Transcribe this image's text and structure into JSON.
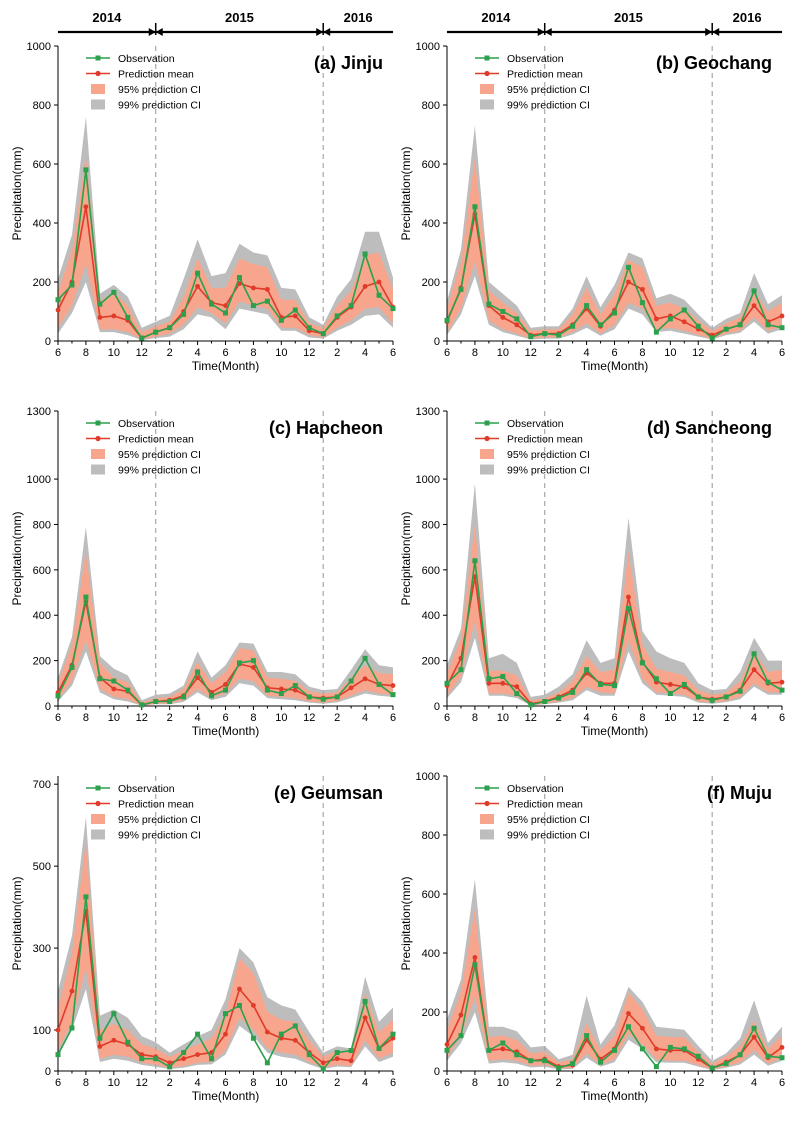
{
  "figure": {
    "x_axis_label": "Time(Month)",
    "y_axis_label": "Precipitation(mm)",
    "years": [
      "2014",
      "2015",
      "2016"
    ],
    "legend": {
      "observation": "Observation",
      "prediction_mean": "Prediction mean",
      "ci95": "95% prediction CI",
      "ci99": "99% prediction CI"
    },
    "colors": {
      "observation": "#2ca04c",
      "prediction_mean": "#e03a28",
      "ci95": "#f7a58c",
      "ci99": "#bdbdbd",
      "divider": "#a8a8a8"
    }
  },
  "chart_data": [
    {
      "type": "line",
      "title": "(a) Jinju",
      "xlabel": "Time(Month)",
      "ylabel": "Precipitation(mm)",
      "x_ticks": [
        "6",
        "8",
        "10",
        "12",
        "2",
        "4",
        "6",
        "8",
        "10",
        "12",
        "2",
        "4",
        "6"
      ],
      "ylim": [
        0,
        1000
      ],
      "y_ticks": [
        0,
        200,
        400,
        600,
        800,
        1000
      ],
      "observation": [
        140,
        190,
        580,
        125,
        165,
        80,
        10,
        30,
        45,
        90,
        230,
        125,
        95,
        215,
        120,
        135,
        70,
        105,
        45,
        25,
        85,
        120,
        295,
        155,
        110
      ],
      "prediction_mean": [
        105,
        200,
        455,
        80,
        85,
        70,
        10,
        30,
        45,
        100,
        185,
        130,
        120,
        195,
        180,
        175,
        80,
        85,
        35,
        25,
        80,
        115,
        185,
        200,
        115
      ],
      "ci95_lower": [
        45,
        120,
        260,
        40,
        40,
        30,
        5,
        15,
        25,
        55,
        115,
        95,
        60,
        135,
        120,
        110,
        45,
        45,
        20,
        12,
        45,
        70,
        110,
        115,
        60
      ],
      "ci95_upper": [
        165,
        310,
        630,
        135,
        165,
        120,
        30,
        50,
        65,
        150,
        280,
        180,
        180,
        280,
        260,
        250,
        140,
        140,
        60,
        45,
        120,
        170,
        290,
        300,
        175
      ],
      "ci99_lower": [
        25,
        95,
        200,
        30,
        30,
        20,
        3,
        10,
        15,
        40,
        90,
        80,
        40,
        110,
        100,
        90,
        35,
        35,
        12,
        8,
        35,
        55,
        85,
        90,
        45
      ],
      "ci99_upper": [
        210,
        360,
        760,
        160,
        190,
        150,
        45,
        65,
        85,
        210,
        345,
        220,
        230,
        330,
        300,
        290,
        180,
        175,
        80,
        55,
        150,
        210,
        370,
        370,
        215
      ]
    },
    {
      "type": "line",
      "title": "(b) Geochang",
      "xlabel": "Time(Month)",
      "ylabel": "Precipitation(mm)",
      "x_ticks": [
        "6",
        "8",
        "10",
        "12",
        "2",
        "4",
        "6",
        "8",
        "10",
        "12",
        "2",
        "4",
        "6"
      ],
      "ylim": [
        0,
        1000
      ],
      "y_ticks": [
        0,
        200,
        400,
        600,
        800,
        1000
      ],
      "observation": [
        70,
        175,
        455,
        125,
        100,
        75,
        15,
        25,
        20,
        50,
        120,
        55,
        95,
        250,
        130,
        30,
        75,
        105,
        50,
        10,
        40,
        55,
        170,
        55,
        45
      ],
      "prediction_mean": [
        65,
        180,
        430,
        120,
        80,
        55,
        20,
        25,
        25,
        55,
        110,
        50,
        105,
        200,
        175,
        75,
        85,
        65,
        40,
        20,
        40,
        55,
        120,
        65,
        85
      ],
      "ci95_lower": [
        30,
        110,
        270,
        70,
        40,
        25,
        8,
        12,
        12,
        30,
        60,
        25,
        55,
        130,
        110,
        40,
        45,
        35,
        20,
        8,
        25,
        35,
        80,
        35,
        50
      ],
      "ci95_upper": [
        110,
        270,
        620,
        170,
        130,
        95,
        35,
        40,
        40,
        90,
        180,
        90,
        160,
        275,
        250,
        120,
        130,
        110,
        70,
        35,
        60,
        80,
        170,
        100,
        130
      ],
      "ci99_lower": [
        20,
        90,
        220,
        55,
        30,
        18,
        5,
        8,
        8,
        22,
        45,
        18,
        40,
        110,
        90,
        30,
        35,
        25,
        15,
        5,
        20,
        28,
        65,
        25,
        40
      ],
      "ci99_upper": [
        135,
        310,
        730,
        200,
        160,
        120,
        45,
        50,
        50,
        110,
        220,
        115,
        190,
        300,
        280,
        145,
        160,
        140,
        90,
        45,
        75,
        95,
        230,
        125,
        155
      ]
    },
    {
      "type": "line",
      "title": "(c) Hapcheon",
      "xlabel": "Time(Month)",
      "ylabel": "Precipitation(mm)",
      "x_ticks": [
        "6",
        "8",
        "10",
        "12",
        "2",
        "4",
        "6",
        "8",
        "10",
        "12",
        "2",
        "4",
        "6"
      ],
      "ylim": [
        0,
        1300
      ],
      "y_ticks": [
        0,
        200,
        400,
        600,
        800,
        1000,
        1300
      ],
      "observation": [
        45,
        170,
        480,
        120,
        110,
        70,
        5,
        20,
        20,
        40,
        150,
        45,
        70,
        190,
        200,
        70,
        55,
        90,
        40,
        30,
        40,
        110,
        210,
        95,
        50
      ],
      "prediction_mean": [
        60,
        180,
        460,
        125,
        75,
        65,
        5,
        20,
        25,
        45,
        125,
        60,
        95,
        185,
        170,
        80,
        75,
        70,
        40,
        35,
        40,
        80,
        120,
        95,
        90
      ],
      "ci95_lower": [
        30,
        110,
        290,
        75,
        40,
        30,
        2,
        10,
        12,
        25,
        75,
        35,
        55,
        120,
        110,
        45,
        40,
        35,
        20,
        15,
        22,
        45,
        70,
        55,
        50
      ],
      "ci95_upper": [
        100,
        270,
        680,
        190,
        125,
        105,
        15,
        35,
        40,
        75,
        195,
        100,
        150,
        255,
        245,
        125,
        120,
        110,
        65,
        55,
        60,
        125,
        180,
        145,
        140
      ],
      "ci99_lower": [
        20,
        90,
        240,
        60,
        30,
        20,
        1,
        8,
        8,
        18,
        60,
        25,
        40,
        100,
        90,
        35,
        30,
        25,
        15,
        10,
        16,
        35,
        55,
        45,
        40
      ],
      "ci99_upper": [
        125,
        305,
        790,
        220,
        165,
        135,
        25,
        50,
        55,
        90,
        240,
        125,
        180,
        280,
        275,
        150,
        150,
        140,
        85,
        70,
        75,
        160,
        250,
        180,
        170
      ]
    },
    {
      "type": "line",
      "title": "(d) Sancheong",
      "xlabel": "Time(Month)",
      "ylabel": "Precipitation(mm)",
      "x_ticks": [
        "6",
        "8",
        "10",
        "12",
        "2",
        "4",
        "6",
        "8",
        "10",
        "12",
        "2",
        "4",
        "6"
      ],
      "ylim": [
        0,
        1300
      ],
      "y_ticks": [
        0,
        200,
        400,
        600,
        800,
        1000,
        1300
      ],
      "observation": [
        100,
        160,
        640,
        120,
        130,
        55,
        5,
        20,
        35,
        60,
        160,
        95,
        90,
        430,
        190,
        120,
        55,
        95,
        40,
        25,
        40,
        65,
        230,
        105,
        70
      ],
      "prediction_mean": [
        90,
        210,
        570,
        100,
        100,
        85,
        10,
        20,
        40,
        70,
        145,
        100,
        100,
        480,
        195,
        105,
        95,
        85,
        40,
        30,
        40,
        70,
        160,
        100,
        105
      ],
      "ci95_lower": [
        45,
        130,
        370,
        55,
        55,
        45,
        4,
        10,
        20,
        35,
        85,
        60,
        55,
        290,
        120,
        60,
        55,
        50,
        20,
        15,
        22,
        40,
        100,
        60,
        60
      ],
      "ci95_upper": [
        145,
        300,
        800,
        155,
        155,
        135,
        25,
        35,
        60,
        110,
        220,
        150,
        160,
        680,
        270,
        165,
        150,
        135,
        70,
        50,
        60,
        110,
        240,
        150,
        160
      ],
      "ci99_lower": [
        35,
        105,
        300,
        45,
        45,
        35,
        2,
        8,
        15,
        25,
        70,
        45,
        45,
        240,
        100,
        50,
        45,
        40,
        15,
        10,
        17,
        30,
        85,
        50,
        50
      ],
      "ci99_upper": [
        180,
        340,
        980,
        210,
        230,
        190,
        40,
        50,
        85,
        140,
        290,
        190,
        210,
        830,
        330,
        240,
        210,
        190,
        100,
        70,
        75,
        150,
        300,
        200,
        200
      ]
    },
    {
      "type": "line",
      "title": "(e) Geumsan",
      "xlabel": "Time(Month)",
      "ylabel": "Precipitation(mm)",
      "x_ticks": [
        "6",
        "8",
        "10",
        "12",
        "2",
        "4",
        "6",
        "8",
        "10",
        "12",
        "2",
        "4",
        "6"
      ],
      "ylim": [
        0,
        720
      ],
      "y_ticks": [
        0,
        100,
        300,
        500,
        700
      ],
      "observation": [
        40,
        105,
        425,
        80,
        140,
        70,
        30,
        30,
        10,
        45,
        90,
        30,
        140,
        160,
        80,
        20,
        90,
        110,
        40,
        5,
        45,
        50,
        170,
        55,
        90
      ],
      "prediction_mean": [
        100,
        195,
        390,
        60,
        75,
        65,
        40,
        35,
        20,
        30,
        40,
        45,
        90,
        200,
        160,
        95,
        80,
        75,
        45,
        20,
        30,
        25,
        130,
        55,
        80
      ],
      "ci95_lower": [
        50,
        120,
        250,
        30,
        40,
        35,
        20,
        15,
        8,
        12,
        20,
        22,
        50,
        130,
        100,
        55,
        45,
        40,
        22,
        8,
        15,
        12,
        75,
        30,
        45
      ],
      "ci95_upper": [
        155,
        290,
        560,
        100,
        115,
        100,
        65,
        55,
        35,
        50,
        65,
        80,
        140,
        275,
        240,
        145,
        125,
        120,
        75,
        35,
        50,
        45,
        190,
        95,
        125
      ],
      "ci99_lower": [
        40,
        100,
        200,
        22,
        30,
        25,
        15,
        10,
        5,
        8,
        15,
        16,
        40,
        110,
        85,
        45,
        35,
        30,
        16,
        5,
        11,
        9,
        60,
        22,
        35
      ],
      "ci99_upper": [
        195,
        330,
        620,
        135,
        150,
        130,
        85,
        70,
        45,
        65,
        85,
        100,
        175,
        300,
        265,
        180,
        160,
        150,
        95,
        45,
        60,
        55,
        230,
        120,
        155
      ]
    },
    {
      "type": "line",
      "title": "(f) Muju",
      "xlabel": "Time(Month)",
      "ylabel": "Precipitation(mm)",
      "x_ticks": [
        "6",
        "8",
        "10",
        "12",
        "2",
        "4",
        "6",
        "8",
        "10",
        "12",
        "2",
        "4",
        "6"
      ],
      "ylim": [
        0,
        1000
      ],
      "y_ticks": [
        0,
        200,
        400,
        600,
        800,
        1000
      ],
      "observation": [
        70,
        120,
        360,
        70,
        95,
        55,
        35,
        35,
        10,
        25,
        120,
        30,
        70,
        150,
        75,
        15,
        80,
        75,
        50,
        10,
        25,
        55,
        145,
        50,
        45
      ],
      "prediction_mean": [
        90,
        190,
        385,
        70,
        75,
        65,
        35,
        40,
        15,
        20,
        105,
        40,
        75,
        195,
        145,
        75,
        70,
        70,
        40,
        10,
        30,
        55,
        115,
        45,
        80
      ],
      "ci95_lower": [
        45,
        120,
        250,
        35,
        40,
        35,
        18,
        20,
        8,
        10,
        60,
        20,
        40,
        125,
        90,
        40,
        35,
        35,
        20,
        5,
        15,
        30,
        70,
        25,
        45
      ],
      "ci95_upper": [
        140,
        270,
        550,
        115,
        120,
        105,
        60,
        65,
        30,
        40,
        160,
        70,
        120,
        265,
        210,
        120,
        115,
        115,
        65,
        25,
        50,
        85,
        170,
        75,
        120
      ],
      "ci99_lower": [
        35,
        95,
        200,
        25,
        30,
        25,
        12,
        15,
        5,
        7,
        45,
        15,
        30,
        105,
        75,
        30,
        28,
        28,
        15,
        3,
        11,
        22,
        55,
        18,
        35
      ],
      "ci99_upper": [
        175,
        310,
        650,
        150,
        150,
        135,
        80,
        85,
        40,
        55,
        255,
        90,
        155,
        285,
        235,
        150,
        145,
        140,
        85,
        35,
        60,
        110,
        240,
        95,
        150
      ]
    }
  ]
}
